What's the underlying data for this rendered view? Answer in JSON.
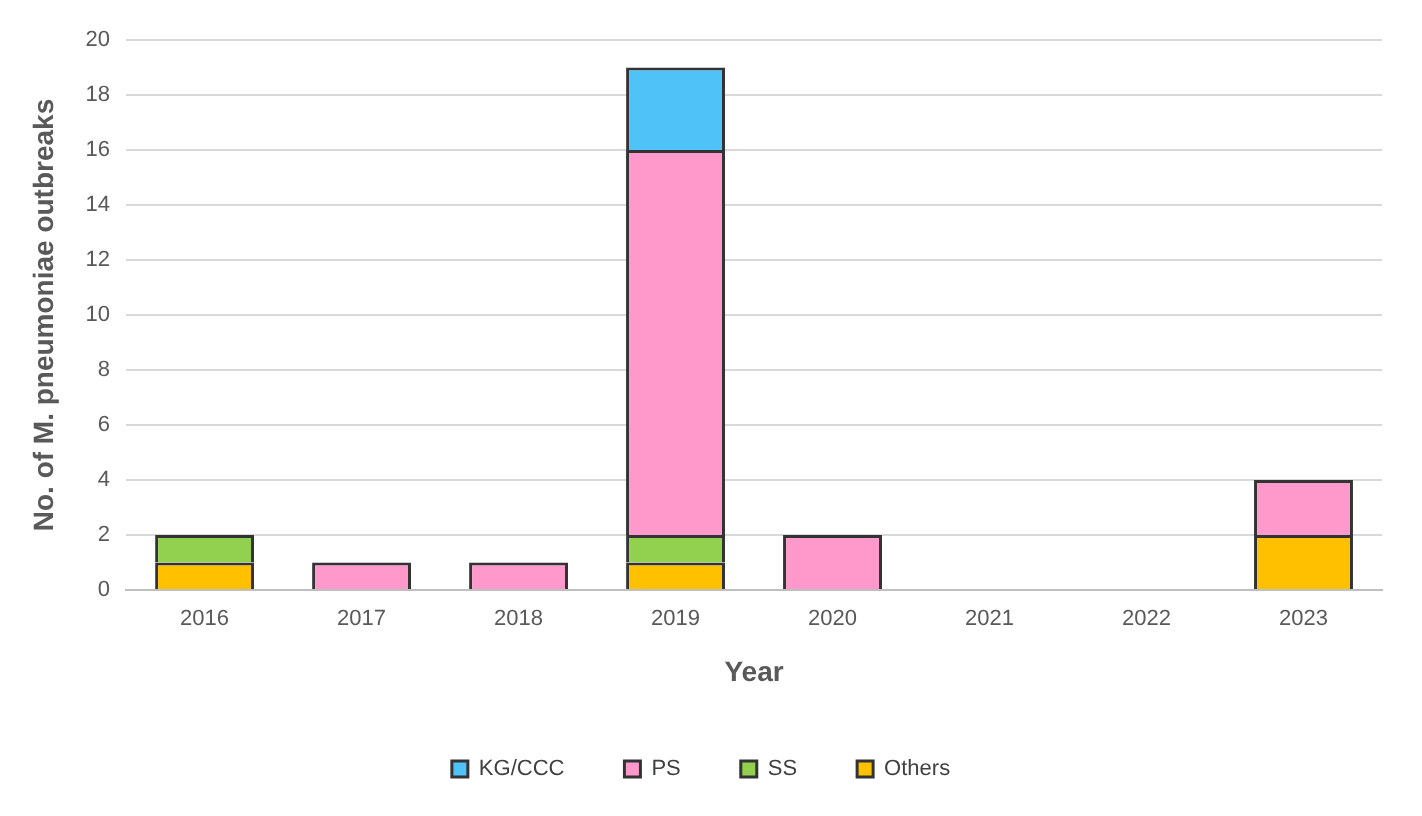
{
  "chart_data": {
    "type": "bar",
    "stacked": true,
    "xlabel": "Year",
    "ylabel": "No. of M. pneumoniae outbreaks",
    "categories": [
      "2016",
      "2017",
      "2018",
      "2019",
      "2020",
      "2021",
      "2022",
      "2023"
    ],
    "series": [
      {
        "name": "Others",
        "color": "#ffc000",
        "values": [
          1,
          0,
          0,
          1,
          0,
          0,
          0,
          2
        ]
      },
      {
        "name": "SS",
        "color": "#92d050",
        "values": [
          1,
          0,
          0,
          1,
          0,
          0,
          0,
          0
        ]
      },
      {
        "name": "PS",
        "color": "#ff99cc",
        "values": [
          0,
          1,
          1,
          14,
          2,
          0,
          0,
          2
        ]
      },
      {
        "name": "KG/CCC",
        "color": "#4fc3f7",
        "values": [
          0,
          0,
          0,
          3,
          0,
          0,
          0,
          0
        ]
      }
    ],
    "ylim": [
      0,
      20
    ],
    "yticks": [
      0,
      2,
      4,
      6,
      8,
      10,
      12,
      14,
      16,
      18,
      20
    ],
    "grid": "y",
    "legend": "bottom"
  }
}
